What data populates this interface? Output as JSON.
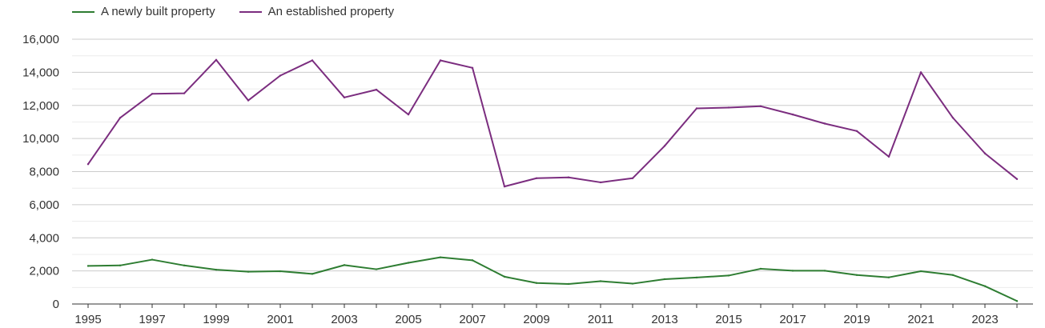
{
  "chart_data": {
    "type": "line",
    "title": "",
    "xlabel": "",
    "ylabel": "",
    "x": [
      1995,
      1996,
      1997,
      1998,
      1999,
      2000,
      2001,
      2002,
      2003,
      2004,
      2005,
      2006,
      2007,
      2008,
      2009,
      2010,
      2011,
      2012,
      2013,
      2014,
      2015,
      2016,
      2017,
      2018,
      2019,
      2020,
      2021,
      2022,
      2023,
      2024
    ],
    "xticks": [
      "1995",
      "1997",
      "1999",
      "2001",
      "2003",
      "2005",
      "2007",
      "2009",
      "2011",
      "2013",
      "2015",
      "2017",
      "2019",
      "2021",
      "2023"
    ],
    "yticks": [
      "0",
      "2,000",
      "4,000",
      "6,000",
      "8,000",
      "10,000",
      "12,000",
      "14,000",
      "16,000"
    ],
    "ylim": [
      0,
      16000
    ],
    "grid": true,
    "legend_position": "top-left",
    "series": [
      {
        "name": "A newly built property",
        "color": "#2e7d32",
        "values": [
          2300,
          2330,
          2680,
          2330,
          2070,
          1950,
          1980,
          1820,
          2350,
          2100,
          2490,
          2820,
          2640,
          1650,
          1270,
          1210,
          1380,
          1230,
          1500,
          1600,
          1720,
          2130,
          2010,
          2010,
          1750,
          1610,
          1980,
          1750,
          1080,
          180
        ]
      },
      {
        "name": "An established property",
        "color": "#7b2d7f",
        "values": [
          8450,
          11250,
          12700,
          12730,
          14750,
          12300,
          13800,
          14720,
          12480,
          12950,
          11450,
          14720,
          14270,
          7100,
          7600,
          7650,
          7350,
          7600,
          9550,
          11820,
          11870,
          11950,
          11450,
          10900,
          10450,
          8900,
          14000,
          11250,
          9100,
          7550
        ]
      }
    ]
  }
}
